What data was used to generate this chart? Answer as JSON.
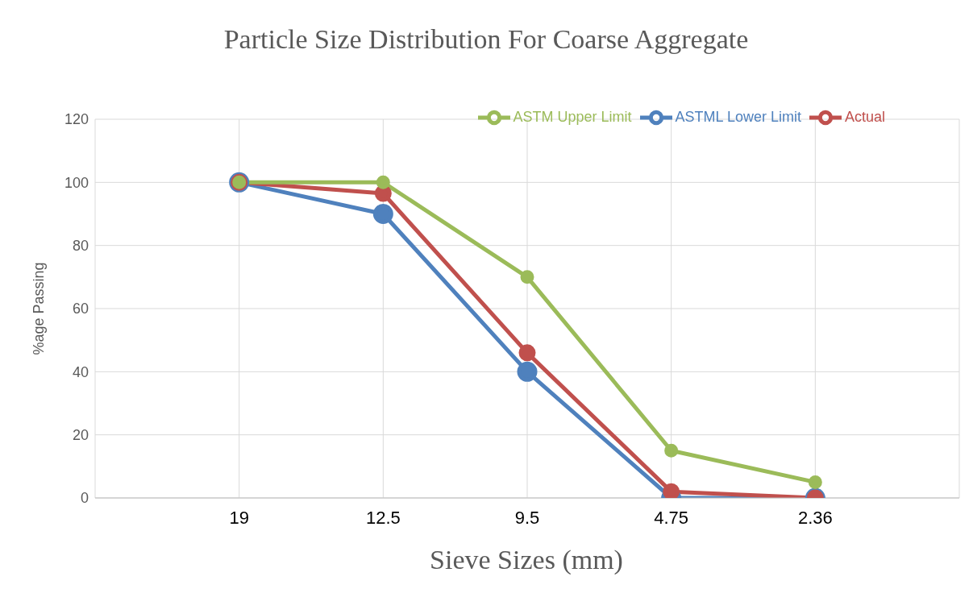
{
  "chart_data": {
    "type": "line",
    "title": "Particle Size Distribution For Coarse Aggregate",
    "xlabel": "Sieve Sizes (mm)",
    "ylabel": "%age Passing",
    "categories": [
      "19",
      "12.5",
      "9.5",
      "4.75",
      "2.36"
    ],
    "series": [
      {
        "name": "ASTML Lower Limit",
        "color": "#4f81bd",
        "values": [
          100,
          90,
          40,
          0,
          0
        ]
      },
      {
        "name": "Actual",
        "color": "#c0504d",
        "values": [
          100,
          96.5,
          46,
          2,
          0
        ]
      },
      {
        "name": "ASTM Upper Limit",
        "color": "#9bbb59",
        "values": [
          100,
          100,
          70,
          15,
          5
        ]
      }
    ],
    "ylim": [
      0,
      120
    ],
    "yticks": [
      0,
      20,
      40,
      60,
      80,
      100,
      120
    ],
    "grid": true,
    "legend": "top right",
    "marker": "circle",
    "line_style": "solid"
  }
}
